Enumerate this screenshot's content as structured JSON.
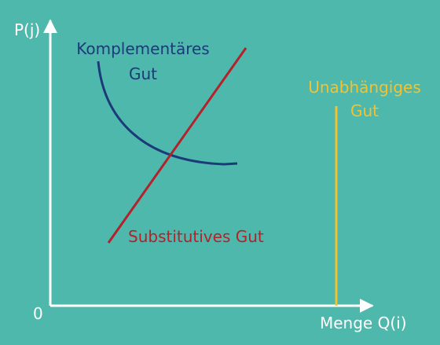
{
  "colors": {
    "background": "#4fb8ad",
    "axes": "#ffffff",
    "complementary": "#1b3a78",
    "substitute": "#b3222b",
    "independent": "#f2c230"
  },
  "axes": {
    "y_label": "P(j)",
    "x_label": "Menge Q(i)",
    "origin_label": "0"
  },
  "curves": {
    "complementary": {
      "line1": "Komplementäres",
      "line2": "Gut"
    },
    "substitute": {
      "label": "Substitutives Gut"
    },
    "independent": {
      "line1": "Unabhängiges",
      "line2": "Gut"
    }
  }
}
